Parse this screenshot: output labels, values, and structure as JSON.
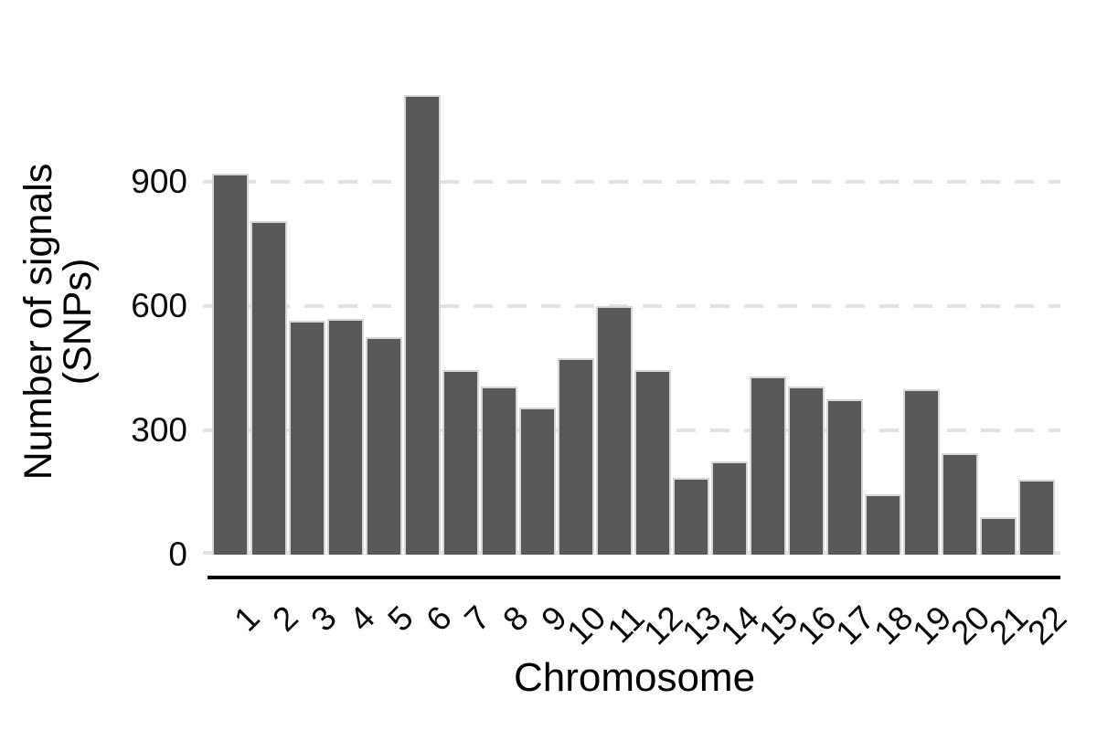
{
  "chart_data": {
    "type": "bar",
    "title": "",
    "categories": [
      "1",
      "2",
      "3",
      "4",
      "5",
      "6",
      "7",
      "8",
      "9",
      "10",
      "11",
      "12",
      "13",
      "14",
      "15",
      "16",
      "17",
      "18",
      "19",
      "20",
      "21",
      "22"
    ],
    "values": [
      920,
      805,
      565,
      570,
      525,
      1110,
      445,
      405,
      355,
      475,
      600,
      445,
      185,
      225,
      430,
      405,
      375,
      145,
      400,
      245,
      90,
      180
    ],
    "xlabel": "Chromosome",
    "ylabel_lines": [
      "Number of signals",
      "(SNPs)"
    ],
    "yticks": [
      0,
      300,
      600,
      900
    ],
    "ylim": [
      0,
      1150
    ],
    "legend": "none",
    "grid": "horizontal dashed at y ticks",
    "colors": {
      "bar_fill": "#595959",
      "bar_edge": "#d6d6d6",
      "gridline": "#e3e3e3",
      "axis_line": "#000000",
      "text": "#0a0a0a"
    }
  }
}
